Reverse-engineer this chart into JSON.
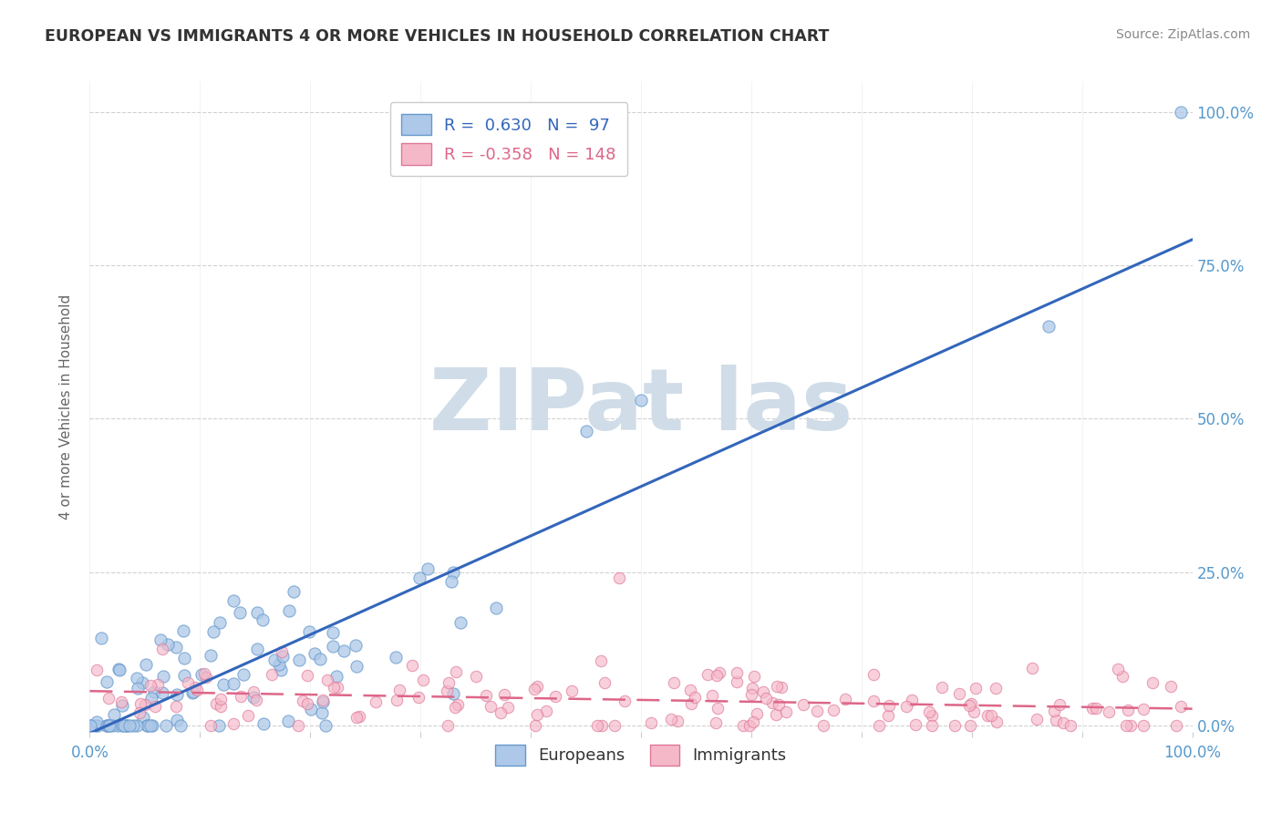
{
  "title": "EUROPEAN VS IMMIGRANTS 4 OR MORE VEHICLES IN HOUSEHOLD CORRELATION CHART",
  "source_text": "Source: ZipAtlas.com",
  "ylabel": "4 or more Vehicles in Household",
  "r_european": 0.63,
  "n_european": 97,
  "r_immigrant": -0.358,
  "n_immigrant": 148,
  "blue_scatter_color": "#adc8e8",
  "blue_edge_color": "#6699cc",
  "pink_scatter_color": "#f5b8c8",
  "pink_edge_color": "#dd7799",
  "blue_line_color": "#3366bb",
  "pink_line_color": "#dd6688",
  "axis_tick_color": "#5599cc",
  "ylabel_color": "#666666",
  "title_color": "#333333",
  "source_color": "#888888",
  "grid_color": "#cccccc",
  "background_color": "#ffffff",
  "watermark_color": "#d0dde8",
  "bottom_legend_color": "#333333"
}
